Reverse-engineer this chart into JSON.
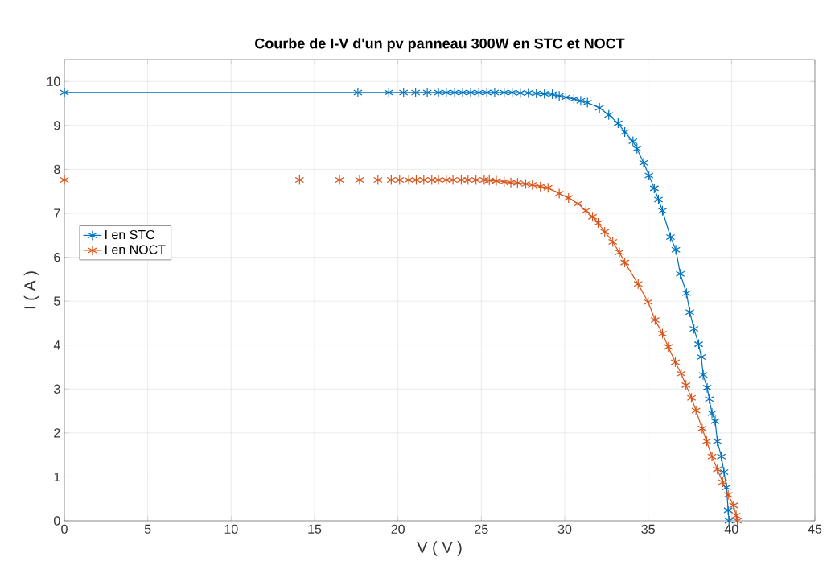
{
  "chart_data": {
    "type": "line",
    "title": "Courbe de I-V d'un pv panneau 300W en STC et NOCT",
    "xlabel": "V ( V )",
    "ylabel": "I ( A )",
    "xlim": [
      0,
      45
    ],
    "ylim": [
      0,
      10.5
    ],
    "xticks": [
      0,
      5,
      10,
      15,
      20,
      25,
      30,
      35,
      40,
      45
    ],
    "yticks": [
      0,
      1,
      2,
      3,
      4,
      5,
      6,
      7,
      8,
      9,
      10
    ],
    "grid": true,
    "legend": "left",
    "marker": "cross",
    "line_style": "solid",
    "series": [
      {
        "name": "I en STC",
        "color": "#0072bd",
        "x": [
          0,
          17.6,
          19.45,
          20.34,
          21.06,
          21.76,
          22.43,
          22.9,
          23.4,
          23.88,
          24.36,
          24.85,
          25.33,
          25.8,
          26.37,
          26.85,
          27.34,
          27.82,
          28.3,
          28.78,
          29.26,
          29.67,
          30.07,
          30.55,
          30.96,
          31.36,
          32.08,
          32.64,
          33.2,
          33.6,
          34.09,
          34.33,
          34.73,
          35.05,
          35.37,
          35.62,
          35.86,
          36.34,
          36.66,
          36.93,
          37.3,
          37.5,
          37.75,
          38.03,
          38.19,
          38.3,
          38.54,
          38.67,
          38.83,
          39.02,
          39.15,
          39.39,
          39.55,
          39.7,
          39.8,
          39.85
        ],
        "values": [
          9.75,
          9.75,
          9.75,
          9.75,
          9.75,
          9.75,
          9.75,
          9.75,
          9.75,
          9.75,
          9.75,
          9.75,
          9.75,
          9.75,
          9.75,
          9.75,
          9.74,
          9.74,
          9.73,
          9.72,
          9.71,
          9.67,
          9.64,
          9.6,
          9.56,
          9.52,
          9.4,
          9.24,
          9.05,
          8.85,
          8.64,
          8.47,
          8.15,
          7.86,
          7.57,
          7.31,
          7.06,
          6.46,
          6.17,
          5.62,
          5.18,
          4.75,
          4.37,
          4.02,
          3.73,
          3.32,
          3.03,
          2.77,
          2.45,
          2.27,
          1.81,
          1.46,
          1.11,
          0.76,
          0.24,
          0
        ]
      },
      {
        "name": "I en NOCT",
        "color": "#d95319",
        "x": [
          0,
          14.1,
          16.5,
          17.7,
          18.8,
          19.6,
          20.1,
          20.65,
          21.1,
          21.55,
          22.03,
          22.43,
          22.9,
          23.3,
          23.8,
          24.2,
          24.68,
          25.17,
          25.48,
          25.9,
          26.37,
          26.77,
          27.17,
          27.66,
          28.06,
          28.54,
          29.0,
          29.67,
          30.23,
          30.79,
          31.27,
          31.67,
          32.0,
          32.4,
          32.88,
          33.28,
          33.6,
          34.4,
          35.0,
          35.42,
          35.86,
          36.21,
          36.63,
          36.98,
          37.27,
          37.6,
          37.87,
          38.24,
          38.51,
          38.83,
          39.15,
          39.47,
          39.8,
          40.12,
          40.28,
          40.35
        ],
        "values": [
          7.76,
          7.76,
          7.76,
          7.76,
          7.76,
          7.76,
          7.76,
          7.76,
          7.76,
          7.76,
          7.76,
          7.76,
          7.76,
          7.76,
          7.76,
          7.76,
          7.76,
          7.76,
          7.75,
          7.74,
          7.72,
          7.7,
          7.69,
          7.67,
          7.65,
          7.61,
          7.58,
          7.45,
          7.35,
          7.22,
          7.06,
          6.92,
          6.78,
          6.58,
          6.35,
          6.11,
          5.88,
          5.39,
          4.98,
          4.57,
          4.26,
          3.96,
          3.61,
          3.35,
          3.09,
          2.8,
          2.51,
          2.1,
          1.81,
          1.46,
          1.17,
          0.88,
          0.59,
          0.35,
          0.12,
          0
        ]
      }
    ]
  }
}
